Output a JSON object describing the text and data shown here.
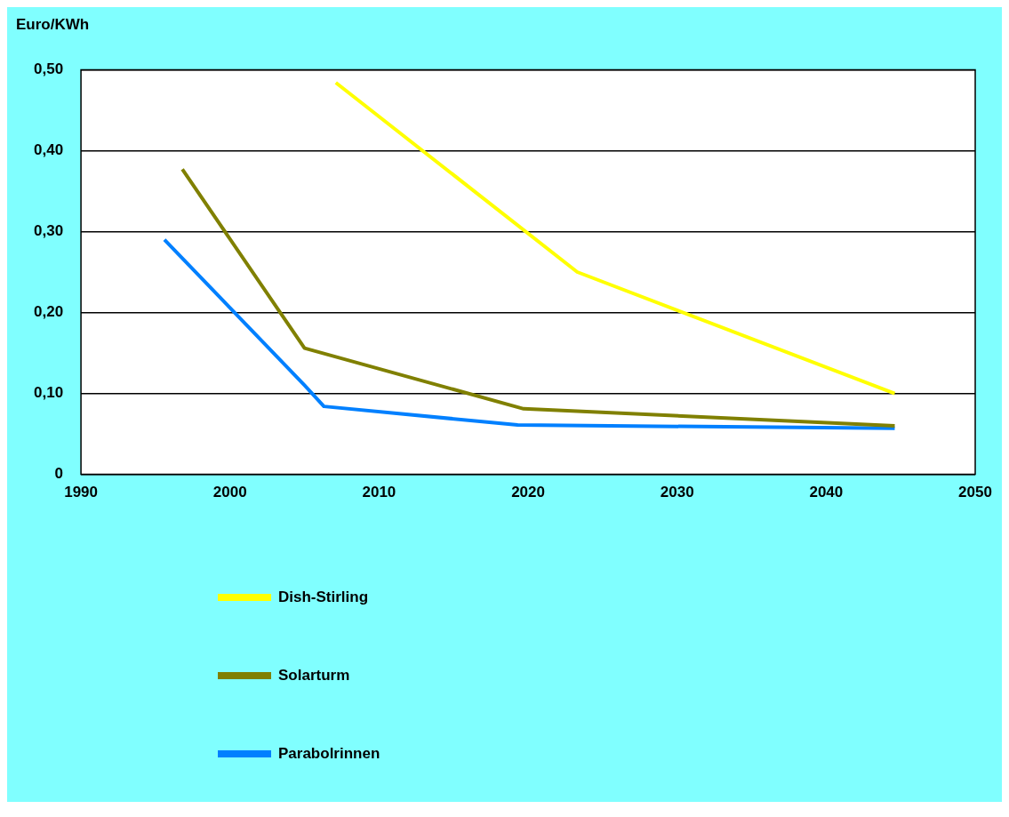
{
  "chart_data": {
    "type": "line",
    "ylabel": "Euro/KWh",
    "series": [
      {
        "name": "Dish-Stirling",
        "color": "#ffff00",
        "x": [
          2007.1,
          2023.3,
          2044.6
        ],
        "values": [
          0.484,
          0.25,
          0.1
        ]
      },
      {
        "name": "Solarturm",
        "color": "#808000",
        "x": [
          1996.8,
          2005,
          2019.7,
          2044.6
        ],
        "values": [
          0.377,
          0.156,
          0.081,
          0.06
        ]
      },
      {
        "name": "Parabolrinnen",
        "color": "#0080ff",
        "x": [
          1995.6,
          2005,
          2006.3,
          2019.3,
          2044.6
        ],
        "values": [
          0.29,
          0.11,
          0.084,
          0.061,
          0.057
        ]
      }
    ],
    "xlim": [
      1990,
      2050
    ],
    "xticks": [
      1990,
      2000,
      2010,
      2020,
      2030,
      2040,
      2050
    ],
    "ylim": [
      0,
      0.5
    ],
    "yticks": [
      0,
      {
        "value": 0.1,
        "label": "0,10"
      },
      {
        "value": 0.2,
        "label": "0,20"
      },
      {
        "value": 0.3,
        "label": "0,30"
      },
      {
        "value": 0.4,
        "label": "0,40"
      },
      {
        "value": 0.5,
        "label": "0,50"
      }
    ],
    "grid": "y",
    "legend": "bottom",
    "marker": "none",
    "line_style": "solid"
  }
}
